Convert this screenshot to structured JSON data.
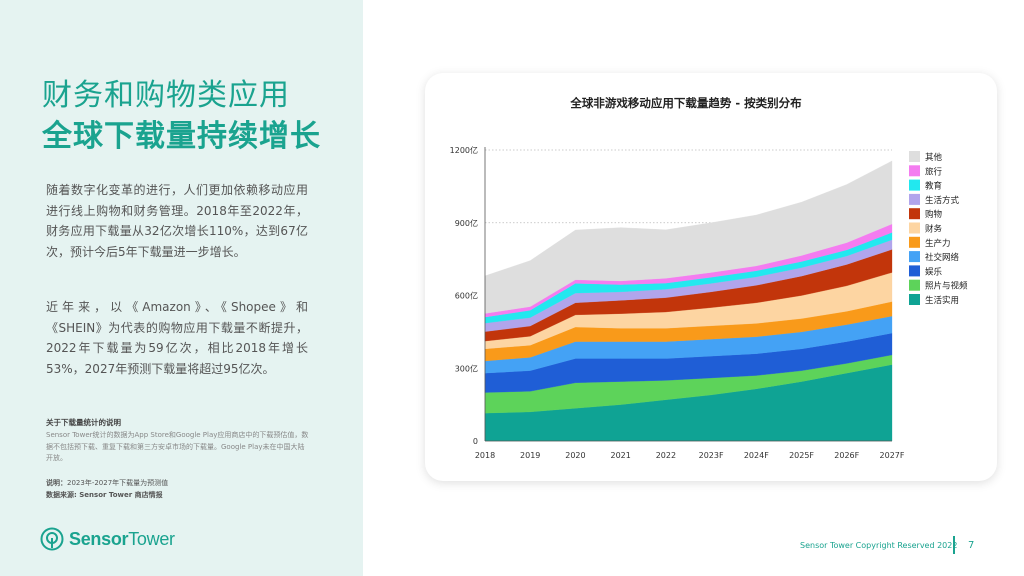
{
  "page": {
    "title_line1": "财务和购物类应用",
    "title_line2": "全球下载量持续增长",
    "paragraph1": "随着数字化变革的进行，人们更加依赖移动应用进行线上购物和财务管理。2018年至2022年，财务应用下载量从32亿次增长110%，达到67亿次，预计今后5年下载量进一步增长。",
    "paragraph2": "近年来，以《Amazon》、《Shopee》和《SHEIN》为代表的购物应用下载量不断提升，2022年下载量为59亿次，相比2018年增长53%，2027年预测下载量将超过95亿次。",
    "note_title": "关于下载量统计的说明",
    "note_text": "Sensor Tower统计的数据为App Store和Google Play应用商店中的下载预估值，数据不包括预下载、重复下载和第三方安卓市场的下载量。Google Play未在中国大陆开放。",
    "explain_label": "说明：",
    "explain_text": "2023年-2027年下载量为预测值",
    "source_label": "数据来源: ",
    "source_text": "Sensor Tower 商店情报",
    "logo_text_1": "Sensor",
    "logo_text_2": "Tower",
    "copyright": "Sensor Tower Copyright Reserved 2022",
    "page_number": "7"
  },
  "chart_data": {
    "type": "area",
    "title": "全球非游戏移动应用下载量趋势 - 按类别分布",
    "categories": [
      "2018",
      "2019",
      "2020",
      "2021",
      "2022",
      "2023F",
      "2024F",
      "2025F",
      "2026F",
      "2027F"
    ],
    "y_ticks": [
      "0",
      "300亿",
      "600亿",
      "900亿",
      "1200亿"
    ],
    "ylim": [
      0,
      1200
    ],
    "stacked": true,
    "legend_position": "right",
    "series": [
      {
        "name": "生活实用",
        "color": "#0fa394",
        "values": [
          115,
          120,
          135,
          150,
          170,
          190,
          215,
          245,
          280,
          315
        ]
      },
      {
        "name": "照片与视频",
        "color": "#5dd35a",
        "values": [
          85,
          85,
          105,
          95,
          80,
          70,
          55,
          45,
          40,
          40
        ]
      },
      {
        "name": "娱乐",
        "color": "#1f5ed6",
        "values": [
          80,
          85,
          100,
          95,
          90,
          90,
          90,
          90,
          90,
          90
        ]
      },
      {
        "name": "社交网络",
        "color": "#44a2f5",
        "values": [
          50,
          55,
          70,
          70,
          70,
          70,
          70,
          70,
          70,
          70
        ]
      },
      {
        "name": "生产力",
        "color": "#f99a1a",
        "values": [
          50,
          50,
          60,
          55,
          55,
          55,
          55,
          55,
          55,
          60
        ]
      },
      {
        "name": "财务",
        "color": "#fdd5a2",
        "values": [
          32,
          37,
          50,
          60,
          67,
          75,
          85,
          95,
          105,
          120
        ]
      },
      {
        "name": "购物",
        "color": "#c2350b",
        "values": [
          39,
          42,
          50,
          55,
          59,
          65,
          72,
          80,
          88,
          95
        ]
      },
      {
        "name": "生活方式",
        "color": "#b1a5ec",
        "values": [
          35,
          35,
          40,
          35,
          35,
          35,
          35,
          35,
          35,
          40
        ]
      },
      {
        "name": "教育",
        "color": "#22e8ef",
        "values": [
          25,
          30,
          40,
          30,
          25,
          25,
          25,
          25,
          25,
          30
        ]
      },
      {
        "name": "旅行",
        "color": "#f47cf0",
        "values": [
          15,
          15,
          15,
          15,
          20,
          20,
          20,
          25,
          30,
          35
        ]
      },
      {
        "name": "其他",
        "color": "#dedede",
        "values": [
          155,
          190,
          205,
          220,
          200,
          205,
          210,
          220,
          240,
          260
        ]
      }
    ]
  }
}
